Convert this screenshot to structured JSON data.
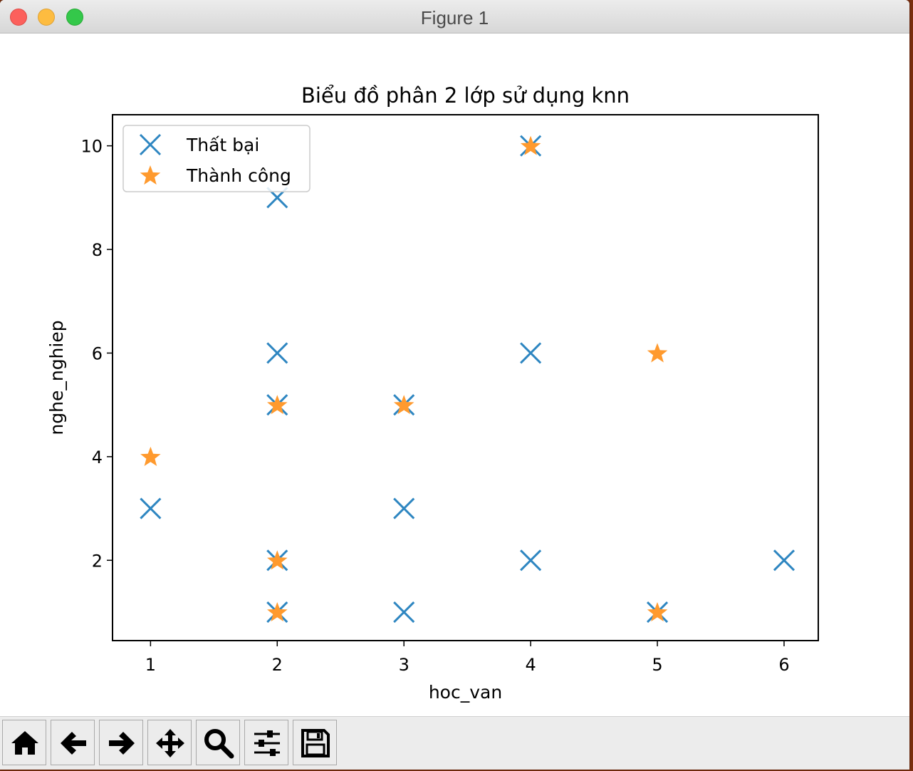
{
  "window": {
    "title": "Figure 1"
  },
  "toolbar": {
    "buttons": [
      {
        "name": "home-button",
        "icon": "home-icon"
      },
      {
        "name": "back-button",
        "icon": "arrow-left-icon"
      },
      {
        "name": "forward-button",
        "icon": "arrow-right-icon"
      },
      {
        "name": "pan-button",
        "icon": "move-arrows-icon"
      },
      {
        "name": "zoom-button",
        "icon": "magnifier-icon"
      },
      {
        "name": "configure-subplots-button",
        "icon": "sliders-icon"
      },
      {
        "name": "save-button",
        "icon": "floppy-disk-icon"
      }
    ]
  },
  "chart_data": {
    "type": "scatter",
    "title": "Biểu đồ phân 2 lớp sử dụng knn",
    "xlabel": "hoc_van",
    "ylabel": "nghe_nghiep",
    "xlim": [
      0.7,
      6.27
    ],
    "ylim": [
      0.45,
      10.6
    ],
    "xticks": [
      1,
      2,
      3,
      4,
      5,
      6
    ],
    "yticks": [
      2,
      4,
      6,
      8,
      10
    ],
    "grid": false,
    "legend_position": "upper-left",
    "series": [
      {
        "name": "Thất bại",
        "marker": "x",
        "color": "#2e86c1",
        "points": [
          [
            1,
            3
          ],
          [
            2,
            9
          ],
          [
            2,
            6
          ],
          [
            2,
            5
          ],
          [
            2,
            2
          ],
          [
            2,
            1
          ],
          [
            3,
            5
          ],
          [
            3,
            3
          ],
          [
            3,
            1
          ],
          [
            4,
            10
          ],
          [
            4,
            6
          ],
          [
            4,
            2
          ],
          [
            5,
            1
          ],
          [
            6,
            2
          ]
        ]
      },
      {
        "name": "Thành công",
        "marker": "star",
        "color": "#ff9a2e",
        "points": [
          [
            1,
            4
          ],
          [
            2,
            5
          ],
          [
            2,
            2
          ],
          [
            2,
            1
          ],
          [
            3,
            5
          ],
          [
            4,
            10
          ],
          [
            5,
            6
          ],
          [
            5,
            1
          ]
        ]
      }
    ]
  }
}
